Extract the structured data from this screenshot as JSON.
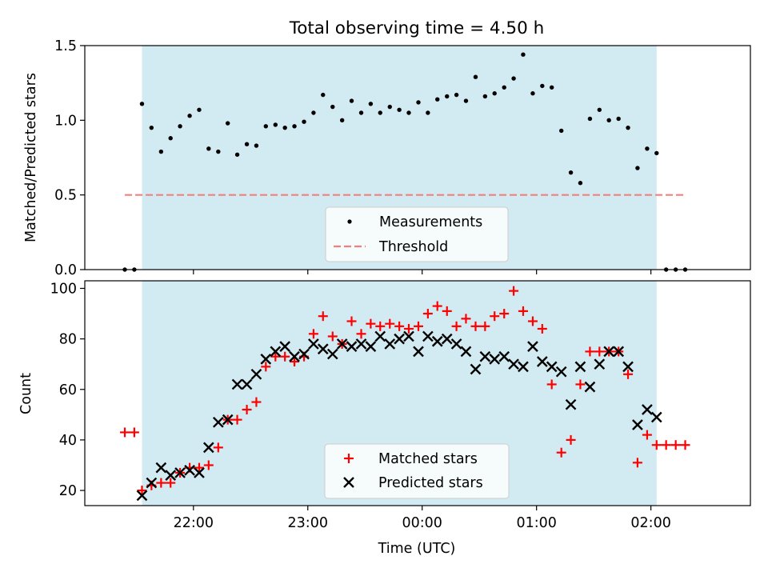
{
  "figure_title": "Total observing time = 4.50 h",
  "colors": {
    "observing_window": "#add8e6",
    "measurement": "#000000",
    "threshold": "#f08080",
    "matched": "#ff0000",
    "predicted": "#000000"
  },
  "chart_data": [
    {
      "type": "scatter",
      "title": "Total observing time = 4.50 h",
      "xlabel": "",
      "ylabel": "Matched/Predicted stars",
      "x_unit": "hours since 00:00 UTC",
      "xlim": [
        -2.95,
        2.87
      ],
      "ylim": [
        0,
        1.5
      ],
      "yticks": [
        0.0,
        0.5,
        1.0,
        1.5
      ],
      "ytick_labels": [
        "0.0",
        "0.5",
        "1.0",
        "1.5"
      ],
      "xticks": [
        -2,
        -1,
        0,
        1,
        2
      ],
      "shaded_interval": [
        -2.45,
        2.05
      ],
      "legend": {
        "position": "lower center",
        "entries": [
          "Measurements",
          "Threshold"
        ]
      },
      "threshold": {
        "name": "Threshold",
        "value": 0.5,
        "x_range": [
          -2.6,
          2.3
        ]
      },
      "series": [
        {
          "name": "Measurements",
          "x": [
            -2.6,
            -2.517,
            -2.45,
            -2.367,
            -2.283,
            -2.2,
            -2.117,
            -2.033,
            -1.95,
            -1.867,
            -1.783,
            -1.7,
            -1.617,
            -1.533,
            -1.45,
            -1.367,
            -1.283,
            -1.2,
            -1.117,
            -1.033,
            -0.95,
            -0.867,
            -0.783,
            -0.7,
            -0.617,
            -0.533,
            -0.45,
            -0.367,
            -0.283,
            -0.2,
            -0.117,
            -0.033,
            0.05,
            0.133,
            0.217,
            0.3,
            0.383,
            0.467,
            0.55,
            0.633,
            0.717,
            0.8,
            0.883,
            0.967,
            1.05,
            1.133,
            1.217,
            1.3,
            1.383,
            1.467,
            1.55,
            1.633,
            1.717,
            1.8,
            1.883,
            1.967,
            2.05,
            2.133,
            2.217,
            2.3
          ],
          "y": [
            0.0,
            0.0,
            1.11,
            0.95,
            0.79,
            0.88,
            0.96,
            1.03,
            1.07,
            0.81,
            0.79,
            0.98,
            0.77,
            0.84,
            0.83,
            0.96,
            0.97,
            0.95,
            0.96,
            0.99,
            1.05,
            1.17,
            1.09,
            1.0,
            1.13,
            1.05,
            1.11,
            1.05,
            1.09,
            1.07,
            1.05,
            1.12,
            1.05,
            1.14,
            1.16,
            1.17,
            1.13,
            1.29,
            1.16,
            1.18,
            1.22,
            1.28,
            1.44,
            1.18,
            1.23,
            1.22,
            0.93,
            0.65,
            0.58,
            1.01,
            1.07,
            1.0,
            1.01,
            0.95,
            0.68,
            0.81,
            0.78,
            0.0,
            0.0,
            0.0
          ]
        }
      ]
    },
    {
      "type": "scatter",
      "title": "",
      "xlabel": "Time (UTC)",
      "ylabel": "Count",
      "x_unit": "hours since 00:00 UTC",
      "xlim": [
        -2.95,
        2.87
      ],
      "ylim": [
        14,
        103
      ],
      "yticks": [
        20,
        40,
        60,
        80,
        100
      ],
      "ytick_labels": [
        "20",
        "40",
        "60",
        "80",
        "100"
      ],
      "xticks": [
        -2,
        -1,
        0,
        1,
        2
      ],
      "xtick_labels": [
        "22:00",
        "23:00",
        "00:00",
        "01:00",
        "02:00"
      ],
      "shaded_interval": [
        -2.45,
        2.05
      ],
      "legend": {
        "position": "lower center",
        "entries": [
          "Matched stars",
          "Predicted stars"
        ]
      },
      "series": [
        {
          "name": "Matched stars",
          "marker": "plus",
          "x": [
            -2.6,
            -2.517,
            -2.45,
            -2.367,
            -2.283,
            -2.2,
            -2.117,
            -2.033,
            -1.95,
            -1.867,
            -1.783,
            -1.7,
            -1.617,
            -1.533,
            -1.45,
            -1.367,
            -1.283,
            -1.2,
            -1.117,
            -1.033,
            -0.95,
            -0.867,
            -0.783,
            -0.7,
            -0.617,
            -0.533,
            -0.45,
            -0.367,
            -0.283,
            -0.2,
            -0.117,
            -0.033,
            0.05,
            0.133,
            0.217,
            0.3,
            0.383,
            0.467,
            0.55,
            0.633,
            0.717,
            0.8,
            0.883,
            0.967,
            1.05,
            1.133,
            1.217,
            1.3,
            1.383,
            1.467,
            1.55,
            1.633,
            1.717,
            1.8,
            1.883,
            1.967,
            2.05,
            2.133,
            2.217,
            2.3
          ],
          "y": [
            43,
            43,
            20,
            22,
            23,
            23,
            27,
            29,
            29,
            30,
            37,
            48,
            48,
            52,
            55,
            69,
            73,
            73,
            71,
            73,
            82,
            89,
            81,
            78,
            87,
            82,
            86,
            85,
            86,
            85,
            84,
            85,
            90,
            93,
            91,
            85,
            88,
            85,
            85,
            89,
            90,
            99,
            91,
            87,
            84,
            62,
            35,
            40,
            62,
            75,
            75,
            75,
            75,
            66,
            31,
            42,
            38,
            38,
            38,
            38
          ]
        },
        {
          "name": "Predicted stars",
          "marker": "x",
          "x": [
            -2.45,
            -2.367,
            -2.283,
            -2.2,
            -2.117,
            -2.033,
            -1.95,
            -1.867,
            -1.783,
            -1.7,
            -1.617,
            -1.533,
            -1.45,
            -1.367,
            -1.283,
            -1.2,
            -1.117,
            -1.033,
            -0.95,
            -0.867,
            -0.783,
            -0.7,
            -0.617,
            -0.533,
            -0.45,
            -0.367,
            -0.283,
            -0.2,
            -0.117,
            -0.033,
            0.05,
            0.133,
            0.217,
            0.3,
            0.383,
            0.467,
            0.55,
            0.633,
            0.717,
            0.8,
            0.883,
            0.967,
            1.05,
            1.133,
            1.217,
            1.3,
            1.383,
            1.467,
            1.55,
            1.633,
            1.717,
            1.8,
            1.883,
            1.967,
            2.05
          ],
          "y": [
            18,
            23,
            29,
            26,
            27,
            28,
            27,
            37,
            47,
            48,
            62,
            62,
            66,
            72,
            75,
            77,
            73,
            74,
            78,
            76,
            74,
            78,
            77,
            78,
            77,
            81,
            78,
            80,
            81,
            75,
            81,
            79,
            80,
            78,
            75,
            68,
            73,
            72,
            73,
            70,
            69,
            77,
            71,
            69,
            67,
            54,
            69,
            61,
            70,
            75,
            75,
            69,
            46,
            52,
            49
          ]
        }
      ]
    }
  ]
}
